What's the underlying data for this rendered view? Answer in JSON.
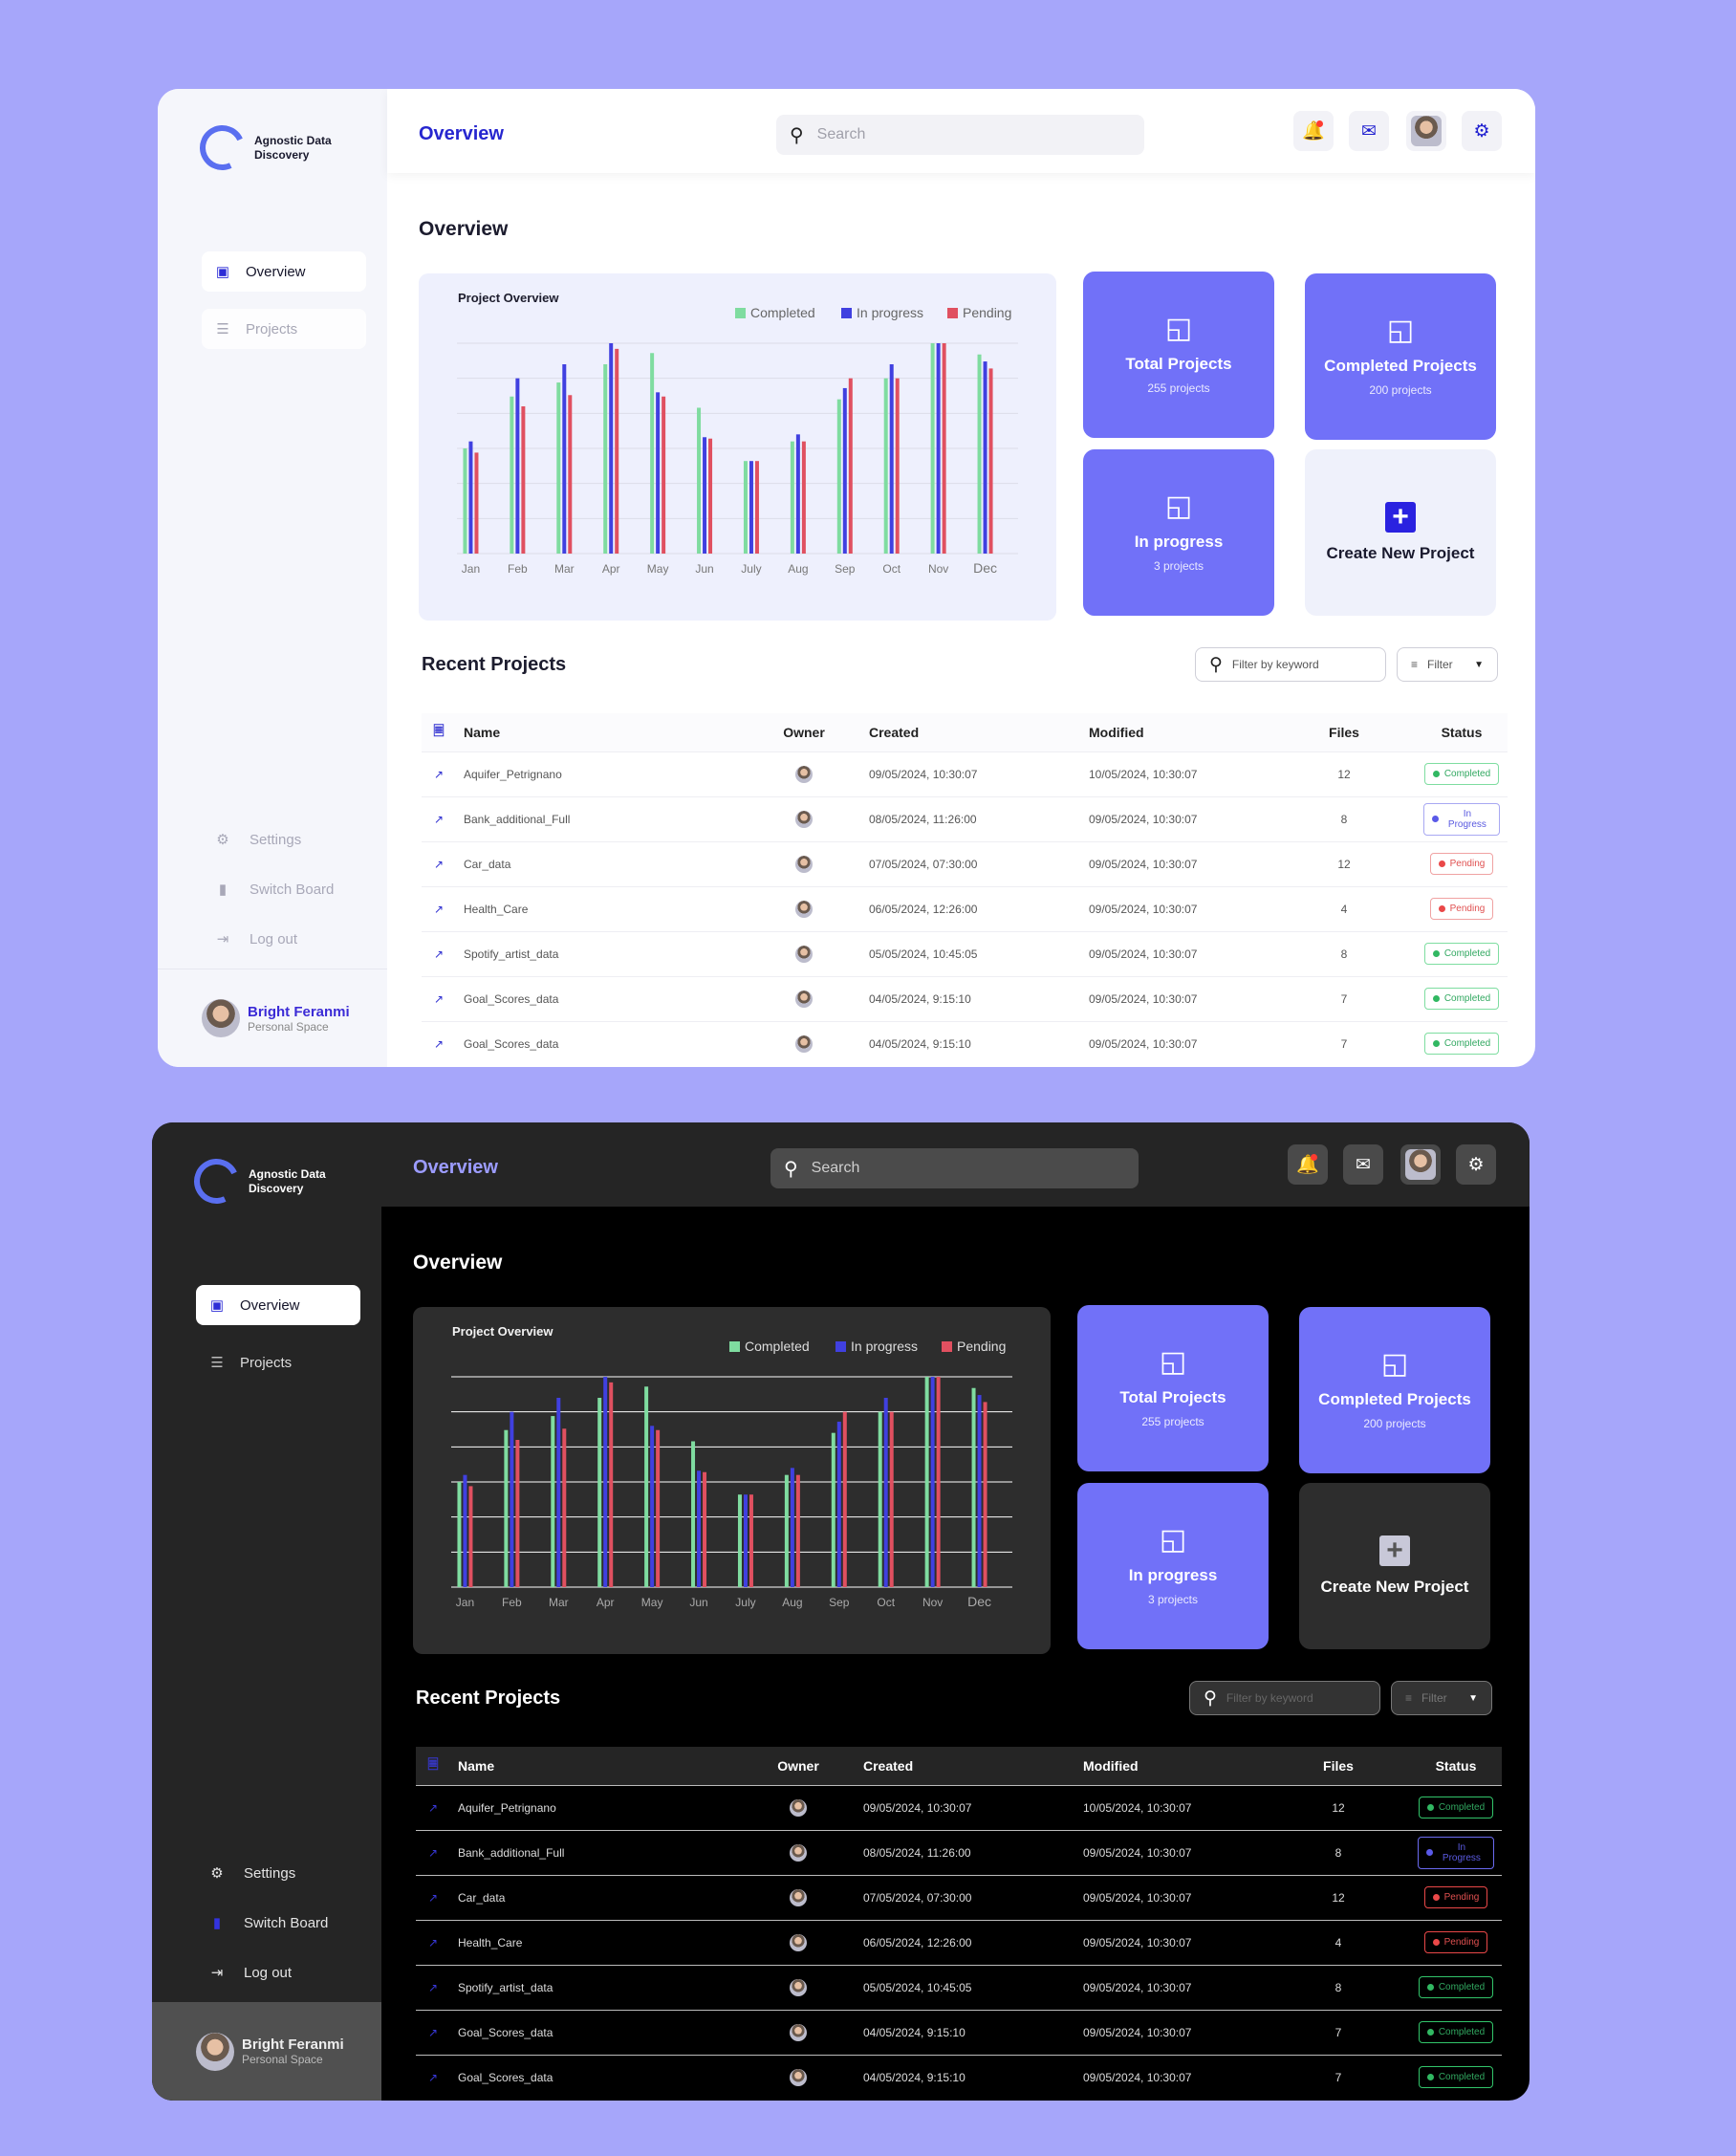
{
  "app": {
    "logo_text": "Agnostic Data Discovery",
    "page_title": "Overview"
  },
  "sidebar": {
    "nav": [
      {
        "label": "Overview",
        "icon": "book-icon"
      },
      {
        "label": "Projects",
        "icon": "list-icon"
      }
    ],
    "bottom": [
      {
        "label": "Settings",
        "icon": "gear-icon"
      },
      {
        "label": "Switch Board",
        "icon": "switch-icon"
      },
      {
        "label": "Log out",
        "icon": "logout-icon"
      }
    ],
    "user": {
      "name": "Bright Feranmi",
      "subtitle": "Personal Space"
    }
  },
  "topbar": {
    "search_placeholder": "Search"
  },
  "section_title": "Overview",
  "chart_data": {
    "type": "bar",
    "title": "Project Overview",
    "categories": [
      "Jan",
      "Feb",
      "Mar",
      "Apr",
      "May",
      "Jun",
      "July",
      "Aug",
      "Sep",
      "Oct",
      "Nov",
      "Dec"
    ],
    "series": [
      {
        "name": "Completed",
        "color": "#7fdca0",
        "values": [
          75,
          112,
          122,
          135,
          143,
          104,
          66,
          80,
          110,
          125,
          150,
          142
        ]
      },
      {
        "name": "In progress",
        "color": "#4040e0",
        "values": [
          80,
          125,
          135,
          150,
          115,
          83,
          66,
          85,
          118,
          135,
          150,
          137
        ]
      },
      {
        "name": "Pending",
        "color": "#e05060",
        "values": [
          72,
          105,
          113,
          146,
          112,
          82,
          66,
          80,
          125,
          125,
          150,
          132
        ]
      }
    ],
    "ylim": [
      0,
      150
    ],
    "grid": true,
    "legend": "top-right"
  },
  "stats": {
    "total": {
      "title": "Total Projects",
      "sub": "255 projects"
    },
    "completed": {
      "title": "Completed Projects",
      "sub": "200 projects"
    },
    "progress": {
      "title": "In progress",
      "sub": "3 projects"
    },
    "create": {
      "title": "Create New Project"
    }
  },
  "recent": {
    "title": "Recent Projects",
    "filter_placeholder": "Filter by keyword",
    "filter_label": "Filter",
    "columns": [
      "Name",
      "Owner",
      "Created",
      "Modified",
      "Files",
      "Status"
    ],
    "rows": [
      {
        "name": "Aquifer_Petrignano",
        "created": "09/05/2024, 10:30:07",
        "modified": "10/05/2024, 10:30:07",
        "files": "12",
        "status": "Completed",
        "kind": "completed"
      },
      {
        "name": "Bank_additional_Full",
        "created": "08/05/2024, 11:26:00",
        "modified": "09/05/2024, 10:30:07",
        "files": "8",
        "status": "In Progress",
        "kind": "inprogress"
      },
      {
        "name": "Car_data",
        "created": "07/05/2024, 07:30:00",
        "modified": "09/05/2024, 10:30:07",
        "files": "12",
        "status": "Pending",
        "kind": "pending"
      },
      {
        "name": "Health_Care",
        "created": "06/05/2024, 12:26:00",
        "modified": "09/05/2024, 10:30:07",
        "files": "4",
        "status": "Pending",
        "kind": "pending"
      },
      {
        "name": "Spotify_artist_data",
        "created": "05/05/2024, 10:45:05",
        "modified": "09/05/2024, 10:30:07",
        "files": "8",
        "status": "Completed",
        "kind": "completed"
      },
      {
        "name": "Goal_Scores_data",
        "created": "04/05/2024, 9:15:10",
        "modified": "09/05/2024, 10:30:07",
        "files": "7",
        "status": "Completed",
        "kind": "completed"
      },
      {
        "name": "Goal_Scores_data",
        "created": "04/05/2024, 9:15:10",
        "modified": "09/05/2024, 10:30:07",
        "files": "7",
        "status": "Completed",
        "kind": "completed"
      }
    ]
  }
}
